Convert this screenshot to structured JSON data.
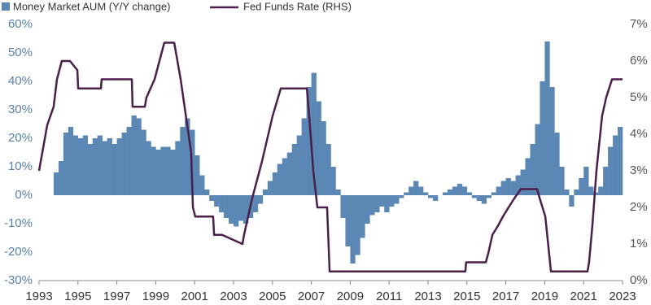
{
  "chart_data": {
    "type": "combo",
    "series": [
      {
        "name": "Money Market AUM (Y/Y change)",
        "color": "#5b87b5",
        "type": "bar",
        "x": [
          1993.875,
          1994.125,
          1994.375,
          1994.625,
          1994.875,
          1995.125,
          1995.375,
          1995.625,
          1995.875,
          1996.125,
          1996.375,
          1996.625,
          1996.875,
          1997.125,
          1997.375,
          1997.625,
          1997.875,
          1998.125,
          1998.375,
          1998.625,
          1998.875,
          1999.125,
          1999.375,
          1999.625,
          1999.875,
          2000.125,
          2000.375,
          2000.625,
          2000.875,
          2001.125,
          2001.375,
          2001.625,
          2001.875,
          2002.125,
          2002.375,
          2002.625,
          2002.875,
          2003.125,
          2003.375,
          2003.625,
          2003.875,
          2004.125,
          2004.375,
          2004.625,
          2004.875,
          2005.125,
          2005.375,
          2005.625,
          2005.875,
          2006.125,
          2006.375,
          2006.625,
          2006.875,
          2007.125,
          2007.375,
          2007.625,
          2007.875,
          2008.125,
          2008.375,
          2008.625,
          2008.875,
          2009.125,
          2009.375,
          2009.625,
          2009.875,
          2010.125,
          2010.375,
          2010.625,
          2010.875,
          2011.125,
          2011.375,
          2011.625,
          2011.875,
          2012.125,
          2012.375,
          2012.625,
          2012.875,
          2013.125,
          2013.375,
          2013.625,
          2013.875,
          2014.125,
          2014.375,
          2014.625,
          2014.875,
          2015.125,
          2015.375,
          2015.625,
          2015.875,
          2016.125,
          2016.375,
          2016.625,
          2016.875,
          2017.125,
          2017.375,
          2017.625,
          2017.875,
          2018.125,
          2018.375,
          2018.625,
          2018.875,
          2019.125,
          2019.375,
          2019.625,
          2019.875,
          2020.125,
          2020.375,
          2020.625,
          2020.875,
          2021.125,
          2021.375,
          2021.625,
          2021.875,
          2022.125,
          2022.375,
          2022.625,
          2022.875
        ],
        "values": [
          8,
          12,
          22,
          24,
          21,
          20,
          21,
          18,
          20,
          21,
          19,
          20,
          18,
          20,
          22,
          24,
          28,
          27,
          23,
          19,
          17,
          16,
          17,
          17,
          16,
          19,
          24,
          27,
          23,
          14,
          7,
          2,
          -2,
          -4,
          -6,
          -8,
          -10,
          -11,
          -9,
          -10,
          -8,
          -6,
          -3,
          2,
          5,
          8,
          11,
          13,
          15,
          18,
          21,
          27,
          38,
          43,
          33,
          26,
          18,
          10,
          2,
          -8,
          -18,
          -24,
          -21,
          -15,
          -10,
          -7,
          -6,
          -4,
          -6,
          -4,
          -3,
          -1,
          1,
          3,
          5,
          3,
          1,
          -1,
          -2,
          0,
          1,
          2,
          3,
          4,
          3,
          1,
          -1,
          -2,
          -3,
          -1,
          1,
          3,
          5,
          6,
          5,
          7,
          9,
          13,
          18,
          25,
          40,
          54,
          38,
          22,
          10,
          2,
          -4,
          2,
          6,
          10,
          3,
          1,
          3,
          10,
          17,
          21,
          24
        ]
      },
      {
        "name": "Fed Funds Rate (RHS)",
        "color": "#4a1f4a",
        "type": "line",
        "axis": "y2",
        "x": [
          1993.0,
          1993.42,
          1993.75,
          1993.92,
          1994.17,
          1994.59,
          1994.97,
          1995.01,
          1996.18,
          1996.22,
          1997.77,
          1997.81,
          1998.44,
          1998.52,
          1998.73,
          1998.94,
          1999.19,
          1999.44,
          1999.95,
          2000.28,
          2000.82,
          2000.91,
          2001.03,
          2001.95,
          2002.0,
          2002.41,
          2003.46,
          2003.54,
          2003.96,
          2004.46,
          2005.01,
          2005.43,
          2006.77,
          2006.89,
          2007.1,
          2007.31,
          2007.81,
          2007.94,
          2014.92,
          2014.96,
          2015.97,
          2016.1,
          2016.31,
          2016.6,
          2016.85,
          2017.14,
          2017.44,
          2017.77,
          2018.61,
          2018.74,
          2019.03,
          2019.32,
          2021.2,
          2021.28,
          2021.45,
          2021.66,
          2021.95,
          2022.16,
          2022.46,
          2023.0
        ],
        "values": [
          3.0,
          4.25,
          4.75,
          5.5,
          6.0,
          6.0,
          5.75,
          5.25,
          5.25,
          5.5,
          5.5,
          4.75,
          4.75,
          5.0,
          5.25,
          5.5,
          6.0,
          6.5,
          6.5,
          5.5,
          3.5,
          2.0,
          1.75,
          1.75,
          1.25,
          1.25,
          1.0,
          1.25,
          2.25,
          3.25,
          4.5,
          5.25,
          5.25,
          4.5,
          3.0,
          2.0,
          2.0,
          0.25,
          0.25,
          0.5,
          0.5,
          0.75,
          1.25,
          1.5,
          1.75,
          2.0,
          2.25,
          2.5,
          2.5,
          2.25,
          1.75,
          0.25,
          0.25,
          0.5,
          1.5,
          3.0,
          4.5,
          5.0,
          5.5,
          5.5
        ]
      }
    ],
    "xlim": [
      1993,
      2023
    ],
    "xticks": [
      1993,
      1995,
      1997,
      1999,
      2001,
      2003,
      2005,
      2007,
      2009,
      2011,
      2013,
      2015,
      2017,
      2019,
      2021,
      2023
    ],
    "ylim": [
      -30,
      60
    ],
    "yticks": [
      {
        "value": -30,
        "label": "-30%"
      },
      {
        "value": -20,
        "label": "-20%"
      },
      {
        "value": -10,
        "label": "-10%"
      },
      {
        "value": 0,
        "label": "0%"
      },
      {
        "value": 10,
        "label": "10%"
      },
      {
        "value": 20,
        "label": "20%"
      },
      {
        "value": 30,
        "label": "30%"
      },
      {
        "value": 40,
        "label": "40%"
      },
      {
        "value": 50,
        "label": "50%"
      },
      {
        "value": 60,
        "label": "60%"
      }
    ],
    "y2lim": [
      0,
      7
    ],
    "y2ticks": [
      {
        "value": 0,
        "label": "0%"
      },
      {
        "value": 1,
        "label": "1%"
      },
      {
        "value": 2,
        "label": "2%"
      },
      {
        "value": 3,
        "label": "3%"
      },
      {
        "value": 4,
        "label": "4%"
      },
      {
        "value": 5,
        "label": "5%"
      },
      {
        "value": 6,
        "label": "6%"
      },
      {
        "value": 7,
        "label": "7%"
      }
    ],
    "grid": false
  }
}
